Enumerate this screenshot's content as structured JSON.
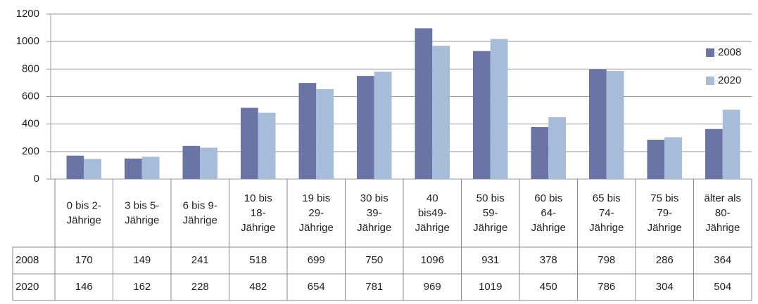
{
  "chart_data": {
    "type": "bar",
    "categories": [
      [
        "0 bis 2-",
        "Jährige"
      ],
      [
        "3 bis 5-",
        "Jährige"
      ],
      [
        "6 bis 9-",
        "Jährige"
      ],
      [
        "10 bis",
        "18-",
        "Jährige"
      ],
      [
        "19 bis",
        "29-",
        "Jährige"
      ],
      [
        "30 bis",
        "39-",
        "Jährige"
      ],
      [
        "40",
        "bis49-",
        "Jährige"
      ],
      [
        "50 bis",
        "59-",
        "Jährige"
      ],
      [
        "60 bis",
        "64-",
        "Jährige"
      ],
      [
        "65 bis",
        "74-",
        "Jährige"
      ],
      [
        "75 bis",
        "79-",
        "Jährige"
      ],
      [
        "älter als",
        "80-",
        "Jährige"
      ]
    ],
    "series": [
      {
        "name": "2008",
        "color": "#6a75a6",
        "values": [
          170,
          149,
          241,
          518,
          699,
          750,
          1096,
          931,
          378,
          798,
          286,
          364
        ]
      },
      {
        "name": "2020",
        "color": "#a6bcd8",
        "values": [
          146,
          162,
          228,
          482,
          654,
          781,
          969,
          1019,
          450,
          786,
          304,
          504
        ]
      }
    ],
    "ylim": [
      0,
      1200
    ],
    "yticks": [
      0,
      200,
      400,
      600,
      800,
      1000,
      1200
    ],
    "grid": true,
    "legend": "right",
    "data_table": true
  }
}
